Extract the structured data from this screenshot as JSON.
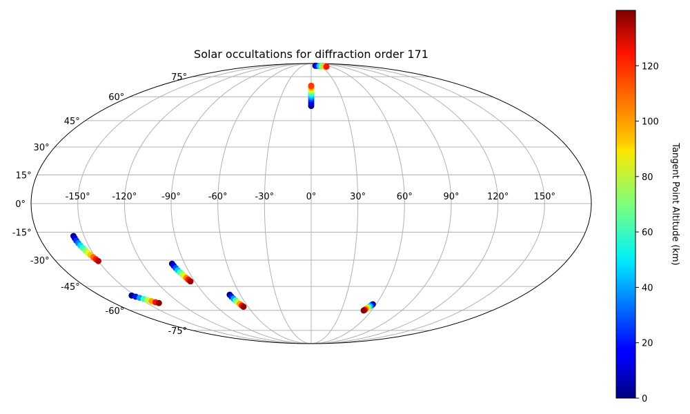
{
  "chart_data": {
    "type": "scatter",
    "projection": "mollweide",
    "title": "Solar occultations for diffraction order 171",
    "xlabel": "",
    "ylabel": "",
    "grid": true,
    "lon_ticks": [
      "-150°",
      "-120°",
      "-90°",
      "-60°",
      "-30°",
      "0°",
      "30°",
      "60°",
      "90°",
      "120°",
      "150°"
    ],
    "lat_ticks": [
      "-75°",
      "-60°",
      "-45°",
      "-30°",
      "-15°",
      "0°",
      "15°",
      "30°",
      "45°",
      "60°",
      "75°"
    ],
    "colorbar": {
      "label": "Tangent Point Altitude (km)",
      "colormap": "jet",
      "range": [
        0,
        140
      ],
      "ticks": [
        "0",
        "20",
        "40",
        "60",
        "80",
        "100",
        "120"
      ]
    },
    "series": [
      {
        "points": [
          {
            "lon": 0.0,
            "lat": 54.0,
            "alt": 0
          },
          {
            "lon": 0.0,
            "lat": 55.5,
            "alt": 8
          },
          {
            "lon": 0.0,
            "lat": 57.0,
            "alt": 16
          },
          {
            "lon": 0.0,
            "lat": 58.3,
            "alt": 25
          },
          {
            "lon": 0.0,
            "lat": 59.5,
            "alt": 35
          },
          {
            "lon": 0.0,
            "lat": 60.7,
            "alt": 45
          },
          {
            "lon": 0.0,
            "lat": 61.8,
            "alt": 55
          },
          {
            "lon": 0.0,
            "lat": 62.9,
            "alt": 65
          },
          {
            "lon": 0.0,
            "lat": 64.0,
            "alt": 75
          },
          {
            "lon": 0.0,
            "lat": 65.0,
            "alt": 85
          },
          {
            "lon": 0.0,
            "lat": 66.0,
            "alt": 95
          },
          {
            "lon": 0.0,
            "lat": 67.0,
            "alt": 105
          },
          {
            "lon": 0.0,
            "lat": 67.8,
            "alt": 115
          }
        ]
      },
      {
        "points": [
          {
            "lon": 15.0,
            "lat": 86.0,
            "alt": 0
          },
          {
            "lon": 20.0,
            "lat": 85.8,
            "alt": 20
          },
          {
            "lon": 27.0,
            "lat": 85.5,
            "alt": 45
          },
          {
            "lon": 33.0,
            "lat": 85.2,
            "alt": 70
          },
          {
            "lon": 40.0,
            "lat": 85.0,
            "alt": 95
          },
          {
            "lon": 46.0,
            "lat": 84.8,
            "alt": 120
          }
        ]
      },
      {
        "points": [
          {
            "lon": -157.0,
            "lat": -17.0,
            "alt": 0
          },
          {
            "lon": -156.8,
            "lat": -18.2,
            "alt": 12
          },
          {
            "lon": -156.5,
            "lat": -19.5,
            "alt": 24
          },
          {
            "lon": -156.0,
            "lat": -20.8,
            "alt": 36
          },
          {
            "lon": -155.4,
            "lat": -22.1,
            "alt": 48
          },
          {
            "lon": -154.7,
            "lat": -23.4,
            "alt": 60
          },
          {
            "lon": -154.0,
            "lat": -24.7,
            "alt": 72
          },
          {
            "lon": -153.2,
            "lat": -26.0,
            "alt": 84
          },
          {
            "lon": -152.4,
            "lat": -27.2,
            "alt": 96
          },
          {
            "lon": -151.6,
            "lat": -28.4,
            "alt": 108
          },
          {
            "lon": -150.8,
            "lat": -29.5,
            "alt": 120
          },
          {
            "lon": -150.0,
            "lat": -30.5,
            "alt": 132
          }
        ]
      },
      {
        "points": [
          {
            "lon": -99.0,
            "lat": -32.0,
            "alt": 0
          },
          {
            "lon": -98.6,
            "lat": -33.2,
            "alt": 15
          },
          {
            "lon": -98.1,
            "lat": -34.4,
            "alt": 30
          },
          {
            "lon": -97.5,
            "lat": -35.6,
            "alt": 45
          },
          {
            "lon": -96.8,
            "lat": -36.8,
            "alt": 60
          },
          {
            "lon": -96.1,
            "lat": -37.9,
            "alt": 75
          },
          {
            "lon": -95.4,
            "lat": -39.0,
            "alt": 90
          },
          {
            "lon": -94.7,
            "lat": -40.0,
            "alt": 105
          },
          {
            "lon": -94.0,
            "lat": -41.0,
            "alt": 120
          },
          {
            "lon": -93.3,
            "lat": -42.0,
            "alt": 135
          }
        ]
      },
      {
        "points": [
          {
            "lon": -153.0,
            "lat": -50.5,
            "alt": 0
          },
          {
            "lon": -151.0,
            "lat": -51.2,
            "alt": 20
          },
          {
            "lon": -149.0,
            "lat": -51.9,
            "alt": 40
          },
          {
            "lon": -147.0,
            "lat": -52.6,
            "alt": 60
          },
          {
            "lon": -145.0,
            "lat": -53.3,
            "alt": 80
          },
          {
            "lon": -143.0,
            "lat": -54.0,
            "alt": 100
          },
          {
            "lon": -141.0,
            "lat": -54.7,
            "alt": 120
          },
          {
            "lon": -139.0,
            "lat": -55.2,
            "alt": 138
          }
        ]
      },
      {
        "points": [
          {
            "lon": -69.0,
            "lat": -50.0,
            "alt": 0
          },
          {
            "lon": -68.6,
            "lat": -51.2,
            "alt": 20
          },
          {
            "lon": -68.0,
            "lat": -52.4,
            "alt": 40
          },
          {
            "lon": -67.3,
            "lat": -53.6,
            "alt": 60
          },
          {
            "lon": -66.6,
            "lat": -54.7,
            "alt": 80
          },
          {
            "lon": -65.8,
            "lat": -55.8,
            "alt": 100
          },
          {
            "lon": -65.0,
            "lat": -56.8,
            "alt": 120
          },
          {
            "lon": -64.3,
            "lat": -57.6,
            "alt": 138
          }
        ]
      },
      {
        "points": [
          {
            "lon": 57.0,
            "lat": -56.0,
            "alt": 0
          },
          {
            "lon": 56.3,
            "lat": -56.6,
            "alt": 20
          },
          {
            "lon": 55.6,
            "lat": -57.2,
            "alt": 40
          },
          {
            "lon": 54.9,
            "lat": -57.8,
            "alt": 60
          },
          {
            "lon": 54.2,
            "lat": -58.4,
            "alt": 80
          },
          {
            "lon": 53.5,
            "lat": -59.0,
            "alt": 100
          },
          {
            "lon": 52.8,
            "lat": -59.6,
            "alt": 120
          },
          {
            "lon": 52.2,
            "lat": -60.1,
            "alt": 138
          }
        ]
      }
    ]
  }
}
